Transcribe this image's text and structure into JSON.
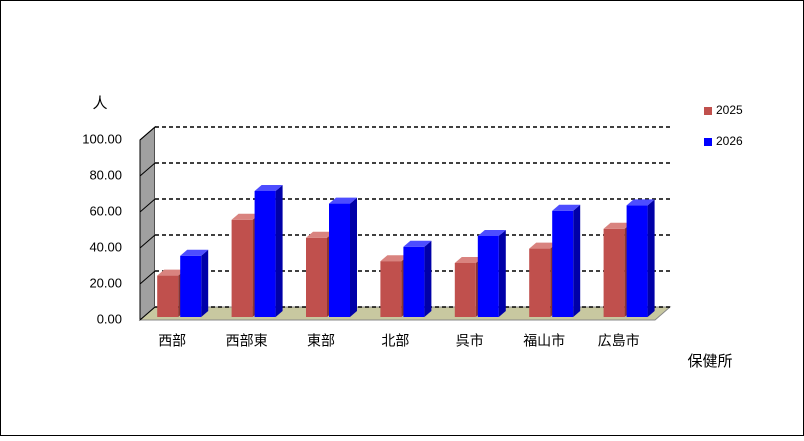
{
  "chart_data": {
    "type": "bar3d",
    "y_label": "人",
    "x_label": "保健所",
    "categories": [
      "西部",
      "西部東",
      "東部",
      "北部",
      "呉市",
      "福山市",
      "広島市"
    ],
    "series": [
      {
        "name": "2025",
        "color": "#c0504d",
        "side": "#8a3532",
        "top": "#d9837f",
        "values": [
          23,
          54,
          44,
          31,
          30,
          38,
          49
        ]
      },
      {
        "name": "2026",
        "color": "#0000ff",
        "side": "#0000a8",
        "top": "#4d4dff",
        "values": [
          34,
          70,
          63,
          39,
          45,
          59,
          62
        ]
      }
    ],
    "ylim": [
      0,
      100
    ],
    "yticks": [
      {
        "value": 0,
        "label": "0.00"
      },
      {
        "value": 20,
        "label": "20.00"
      },
      {
        "value": 40,
        "label": "40.00"
      },
      {
        "value": 60,
        "label": "60.00"
      },
      {
        "value": 80,
        "label": "80.00"
      },
      {
        "value": 100,
        "label": "100.00"
      }
    ],
    "grid": true,
    "legend": "right"
  }
}
